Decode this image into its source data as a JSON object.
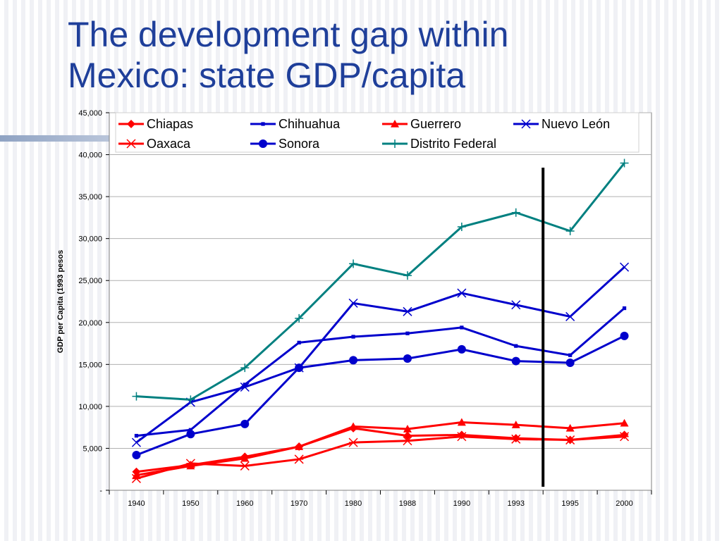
{
  "slide": {
    "title_line1": "The development gap within",
    "title_line2": "Mexico: state GDP/capita"
  },
  "chart_data": {
    "type": "line",
    "title": "The development gap within Mexico: state GDP/capita",
    "ylabel": "GDP per Capita (1993 pesos",
    "xlabel": "",
    "categories": [
      "1940",
      "1950",
      "1960",
      "1970",
      "1980",
      "1988",
      "1990",
      "1993",
      "1995",
      "2000"
    ],
    "ylim": [
      0,
      45000
    ],
    "yticks": [
      {
        "value": 0,
        "label": "-"
      },
      {
        "value": 5000,
        "label": "5,000"
      },
      {
        "value": 10000,
        "label": "10,000"
      },
      {
        "value": 15000,
        "label": "15,000"
      },
      {
        "value": 20000,
        "label": "20,000"
      },
      {
        "value": 25000,
        "label": "25,000"
      },
      {
        "value": 30000,
        "label": "30,000"
      },
      {
        "value": 35000,
        "label": "35,000"
      },
      {
        "value": 40000,
        "label": "40,000"
      },
      {
        "value": 45000,
        "label": "45,000"
      }
    ],
    "grid": true,
    "legend_position": "top",
    "series": [
      {
        "name": "Chiapas",
        "color": "#ff0000",
        "marker": "diamond",
        "values": [
          2200,
          3000,
          4000,
          5200,
          7400,
          6500,
          6600,
          6200,
          6000,
          6600
        ]
      },
      {
        "name": "Chihuahua",
        "color": "#0000cc",
        "marker": "square",
        "values": [
          6500,
          7200,
          12600,
          17600,
          18300,
          18700,
          19400,
          17200,
          16100,
          21700
        ]
      },
      {
        "name": "Guerrero",
        "color": "#ff0000",
        "marker": "triangle",
        "values": [
          1800,
          2900,
          3800,
          5200,
          7600,
          7300,
          8100,
          7800,
          7400,
          8000
        ]
      },
      {
        "name": "Nuevo León",
        "color": "#0000cc",
        "marker": "x",
        "values": [
          5700,
          10500,
          12300,
          14600,
          22300,
          21300,
          23500,
          22100,
          20700,
          26600
        ]
      },
      {
        "name": "Oaxaca",
        "color": "#ff0000",
        "marker": "asterisk",
        "values": [
          1400,
          3200,
          2900,
          3700,
          5700,
          5900,
          6400,
          6100,
          6000,
          6400
        ]
      },
      {
        "name": "Sonora",
        "color": "#0000cc",
        "marker": "circle",
        "values": [
          4200,
          6700,
          7900,
          14600,
          15500,
          15700,
          16800,
          15400,
          15200,
          18400
        ]
      },
      {
        "name": "Distrito Federal",
        "color": "#008080",
        "marker": "plus",
        "values": [
          11200,
          10800,
          14600,
          20500,
          27000,
          25600,
          31400,
          33100,
          30900,
          39000
        ]
      }
    ],
    "annotations": [
      {
        "type": "vertical-line",
        "between": [
          "1993",
          "1995"
        ],
        "color": "#000000"
      }
    ]
  }
}
